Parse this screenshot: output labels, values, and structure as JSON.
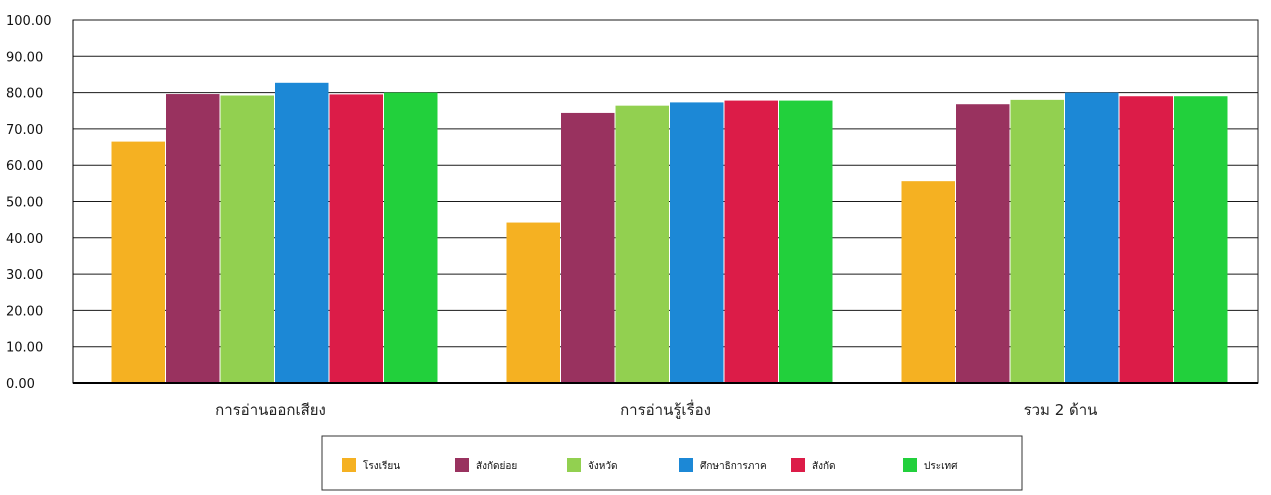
{
  "chart_data": {
    "type": "bar",
    "title": "",
    "xlabel": "",
    "ylabel": "",
    "ylim": [
      0,
      100
    ],
    "yticks": [
      "0.00",
      "10.00",
      "20.00",
      "30.00",
      "40.00",
      "50.00",
      "60.00",
      "70.00",
      "80.00",
      "90.00",
      "100.00"
    ],
    "categories": [
      "การอ่านออกเสียง",
      "การอ่านรู้เรื่อง",
      "รวม 2 ด้าน"
    ],
    "series": [
      {
        "name": "โรงเรียน",
        "color": "#f5b122",
        "values": [
          66.5,
          44.2,
          55.6
        ]
      },
      {
        "name": "สังกัดย่อย",
        "color": "#99325f",
        "values": [
          79.6,
          74.4,
          76.8
        ]
      },
      {
        "name": "จังหวัด",
        "color": "#92d050",
        "values": [
          79.2,
          76.4,
          78.0
        ]
      },
      {
        "name": "ศึกษาธิการภาค",
        "color": "#1c88d6",
        "values": [
          82.7,
          77.3,
          80.0
        ]
      },
      {
        "name": "สังกัด",
        "color": "#dc1c48",
        "values": [
          79.5,
          77.8,
          79.0
        ]
      },
      {
        "name": "ประเทศ",
        "color": "#22d03c",
        "values": [
          80.0,
          77.8,
          79.0
        ]
      }
    ],
    "grid": true,
    "legend_position": "bottom"
  }
}
